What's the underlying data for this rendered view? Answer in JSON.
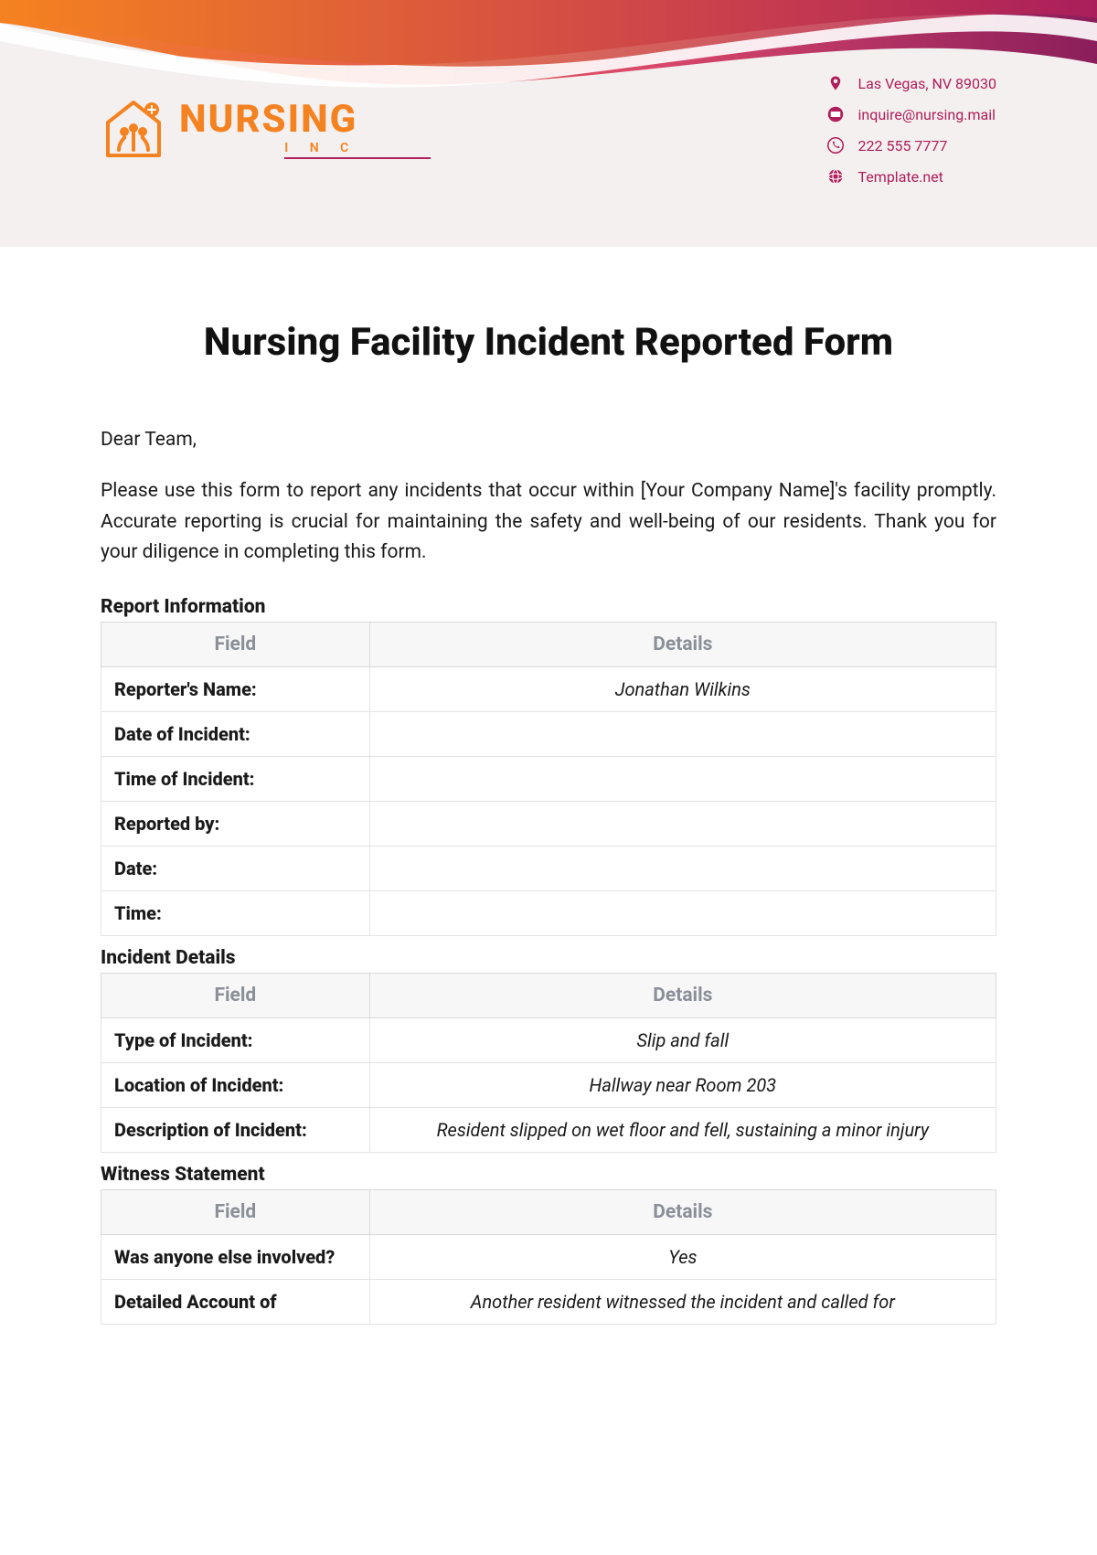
{
  "header": {
    "logo": {
      "main": "NURSING",
      "sub": "I N C"
    },
    "contacts": [
      {
        "icon": "location",
        "text": "Las Vegas, NV 89030"
      },
      {
        "icon": "mail",
        "text": "inquire@nursing.mail"
      },
      {
        "icon": "phone",
        "text": "222 555 7777"
      },
      {
        "icon": "globe",
        "text": "Template.net"
      }
    ]
  },
  "title": "Nursing Facility Incident Reported Form",
  "salutation": "Dear Team,",
  "intro": "Please use this form to report any incidents that occur within [Your Company Name]'s facility promptly. Accurate reporting is crucial for maintaining the safety and well-being of our residents. Thank you for your diligence in completing this form.",
  "sections": [
    {
      "title": "Report Information",
      "headers": [
        "Field",
        "Details"
      ],
      "rows": [
        {
          "field": "Reporter's Name:",
          "detail": "Jonathan Wilkins"
        },
        {
          "field": "Date of Incident:",
          "detail": ""
        },
        {
          "field": "Time of Incident:",
          "detail": ""
        },
        {
          "field": "Reported by:",
          "detail": ""
        },
        {
          "field": "Date:",
          "detail": ""
        },
        {
          "field": "Time:",
          "detail": ""
        }
      ]
    },
    {
      "title": "Incident Details",
      "headers": [
        "Field",
        "Details"
      ],
      "rows": [
        {
          "field": "Type of Incident:",
          "detail": "Slip and fall"
        },
        {
          "field": "Location of Incident:",
          "detail": "Hallway near Room 203"
        },
        {
          "field": "Description of Incident:",
          "detail": "Resident slipped on wet floor and fell, sustaining a minor injury"
        }
      ]
    },
    {
      "title": "Witness Statement",
      "headers": [
        "Field",
        "Details"
      ],
      "rows": [
        {
          "field": "Was anyone else involved?",
          "detail": "Yes"
        },
        {
          "field": "Detailed Account of",
          "detail": "Another resident witnessed the incident and called for"
        }
      ]
    }
  ],
  "colors": {
    "brand_orange": "#f58220",
    "brand_magenta": "#b01e5b",
    "brand_dark": "#7c2056",
    "header_bg": "#f3f0ef",
    "th_bg": "#f7f7f7",
    "th_color": "#8a8f98",
    "border": "#d9d9d9"
  }
}
